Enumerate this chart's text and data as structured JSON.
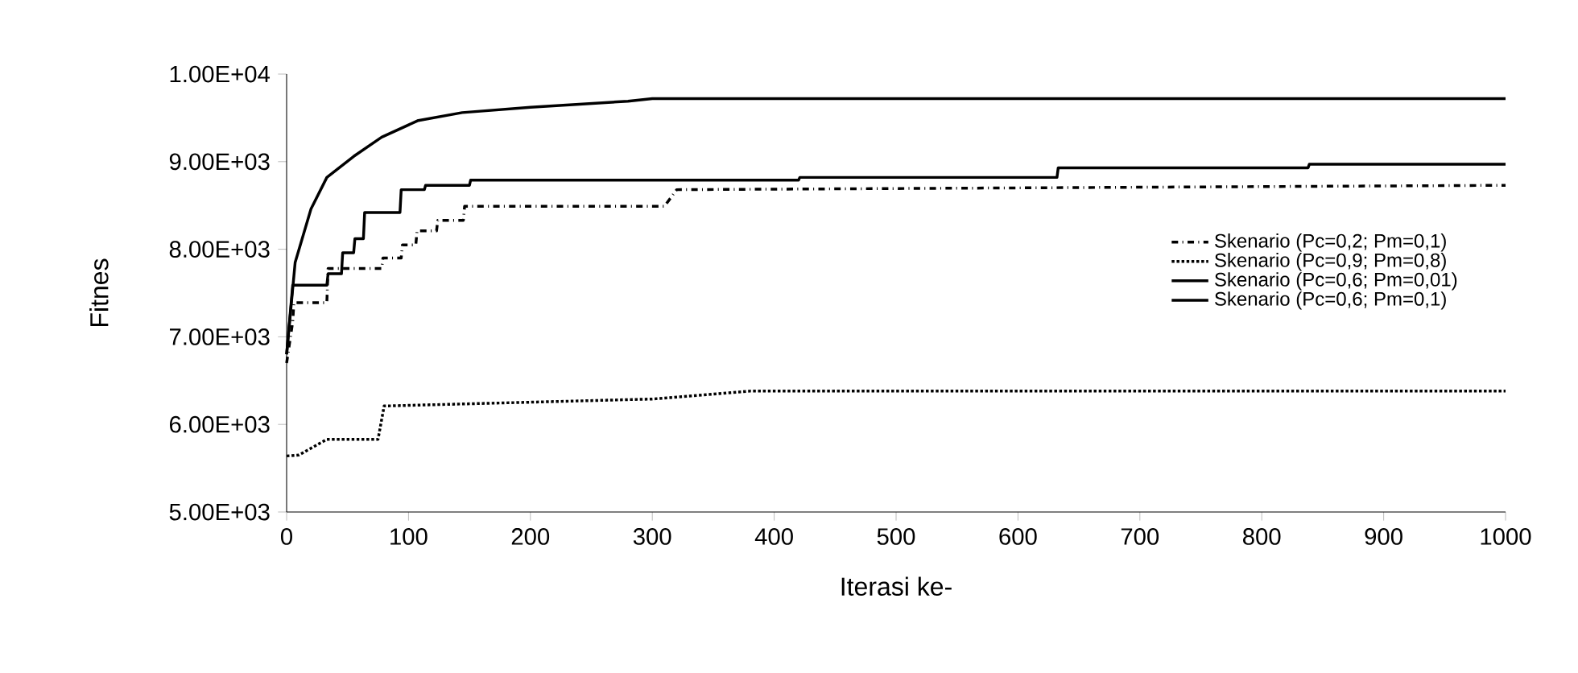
{
  "chart_data": {
    "type": "line",
    "xlabel": "Iterasi ke-",
    "ylabel": "Fitnes",
    "xlim": [
      0,
      1000
    ],
    "xticks": [
      0,
      100,
      200,
      300,
      400,
      500,
      600,
      700,
      800,
      900,
      1000
    ],
    "ylim": [
      5000,
      10000
    ],
    "yticks": [
      {
        "value": 5000,
        "label": "5.00E+03"
      },
      {
        "value": 6000,
        "label": "6.00E+03"
      },
      {
        "value": 7000,
        "label": "7.00E+03"
      },
      {
        "value": 8000,
        "label": "8.00E+03"
      },
      {
        "value": 9000,
        "label": "9.00E+03"
      },
      {
        "value": 10000,
        "label": "1.00E+04"
      }
    ],
    "grid": false,
    "legend": "right",
    "marker": "none",
    "series": [
      {
        "name": "Skenario (Pc=0,2; Pm=0,1)",
        "color": "#000000",
        "line_style": "dashdot",
        "x": [
          0,
          5,
          6,
          33,
          34,
          78,
          79,
          94,
          95,
          106,
          107,
          123,
          124,
          145,
          146,
          310,
          320,
          1000
        ],
        "values": [
          6700,
          7170,
          7390,
          7390,
          7780,
          7780,
          7900,
          7900,
          8050,
          8050,
          8210,
          8210,
          8330,
          8330,
          8490,
          8490,
          8680,
          8730
        ]
      },
      {
        "name": "Skenario (Pc=0,9; Pm=0,8)",
        "color": "#000000",
        "line_style": "dotted",
        "x": [
          0,
          10,
          33,
          75,
          80,
          300,
          380,
          1000
        ],
        "values": [
          5640,
          5650,
          5830,
          5830,
          6210,
          6290,
          6380,
          6380
        ]
      },
      {
        "name": "Skenario (Pc=0,6; Pm=0,01)",
        "color": "#000000",
        "line_style": "solid",
        "x": [
          0,
          7,
          20,
          33,
          55,
          78,
          108,
          144,
          200,
          280,
          300,
          1000
        ],
        "values": [
          6800,
          7850,
          8460,
          8820,
          9060,
          9280,
          9470,
          9560,
          9620,
          9690,
          9720,
          9720
        ]
      },
      {
        "name": "Skenario (Pc=0,6; Pm=0,1)",
        "color": "#000000",
        "line_style": "solid",
        "x": [
          0,
          5,
          33,
          34,
          45,
          46,
          55,
          56,
          63,
          64,
          93,
          94,
          113,
          114,
          150,
          151,
          420,
          421,
          632,
          633,
          838,
          839,
          1000
        ],
        "values": [
          6800,
          7590,
          7590,
          7720,
          7720,
          7960,
          7960,
          8120,
          8120,
          8420,
          8420,
          8680,
          8680,
          8730,
          8730,
          8790,
          8790,
          8820,
          8820,
          8930,
          8930,
          8970,
          8970
        ]
      }
    ]
  }
}
